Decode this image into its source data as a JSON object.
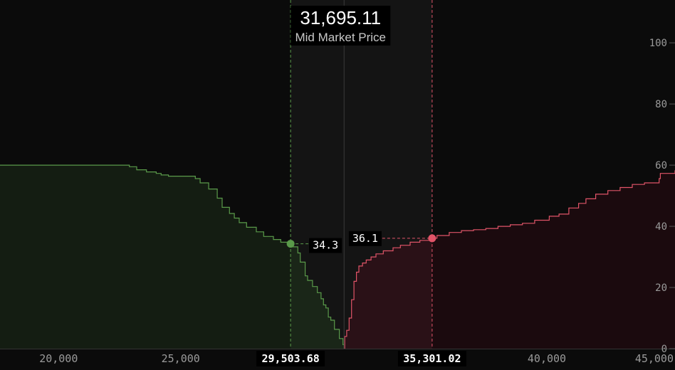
{
  "mid_price": {
    "value": "31,695.11",
    "label": "Mid Market Price"
  },
  "colors": {
    "background": "#0b0b0b",
    "bid_line": "#5a9a4a",
    "bid_fill": "#141d12",
    "bid_fill_highlight": "#1a2618",
    "ask_line": "#e05468",
    "ask_fill": "#1b0a0e",
    "ask_fill_highlight": "#2a1117",
    "band": "#141414",
    "axis_text": "#9a9a9a"
  },
  "chart_data": {
    "type": "area",
    "title": "",
    "xlabel": "",
    "ylabel": "",
    "xlim": [
      17600,
      45250
    ],
    "ylim": [
      0,
      114
    ],
    "x_ticks": [
      "20,000",
      "25,000",
      "40,000",
      "45,000"
    ],
    "y_ticks": [
      "0",
      "20",
      "40",
      "60",
      "80",
      "100"
    ],
    "grid": false,
    "series": [
      {
        "side": "bid",
        "x": [
          17600,
          22650,
          22900,
          23200,
          23600,
          24000,
          24200,
          24500,
          25600,
          25800,
          26150,
          26500,
          26700,
          27000,
          27200,
          27400,
          27700,
          28100,
          28400,
          28800,
          29100,
          29503.68,
          29600,
          29800,
          29900,
          30100,
          30200,
          30400,
          30600,
          30750,
          30850,
          30950,
          31050,
          31150,
          31300,
          31500,
          31650,
          31695
        ],
        "values": [
          60,
          60,
          59.5,
          58.5,
          57.8,
          57.3,
          56.8,
          56.4,
          55.6,
          54.2,
          52.2,
          49.2,
          46.2,
          44.2,
          42.7,
          41.2,
          39.7,
          38.2,
          36.7,
          35.7,
          34.8,
          34.3,
          33.3,
          31.3,
          28.3,
          23.8,
          22.3,
          20.3,
          18.3,
          16.3,
          14.3,
          13.3,
          10.3,
          9.3,
          6.3,
          3.3,
          1.3,
          0
        ]
      },
      {
        "side": "ask",
        "x": [
          31695,
          31720,
          31800,
          31900,
          32000,
          32100,
          32200,
          32300,
          32450,
          32600,
          32800,
          33000,
          33300,
          33700,
          34000,
          34400,
          34800,
          35301.02,
          35500,
          36000,
          36500,
          37000,
          37500,
          38000,
          38500,
          39000,
          39500,
          40100,
          40500,
          40900,
          41300,
          41600,
          42000,
          42500,
          43000,
          43500,
          44000,
          44600,
          44650,
          45250
        ],
        "values": [
          0,
          4,
          6,
          10,
          16,
          22,
          25,
          27,
          28,
          29,
          30,
          31,
          32,
          33,
          33.8,
          34.8,
          35.4,
          36.1,
          37,
          38,
          38.6,
          38.9,
          39.3,
          40,
          40.5,
          41,
          42,
          43.3,
          44,
          46,
          47.5,
          49,
          50.5,
          51.7,
          52.7,
          53.7,
          54.2,
          55.6,
          57.3,
          58.3
        ]
      }
    ],
    "markers": [
      {
        "side": "bid",
        "price": 29503.68,
        "price_label": "29,503.68",
        "amount": 34.3,
        "amount_label": "34.3"
      },
      {
        "side": "ask",
        "price": 35301.02,
        "price_label": "35,301.02",
        "amount": 36.1,
        "amount_label": "36.1"
      }
    ]
  }
}
